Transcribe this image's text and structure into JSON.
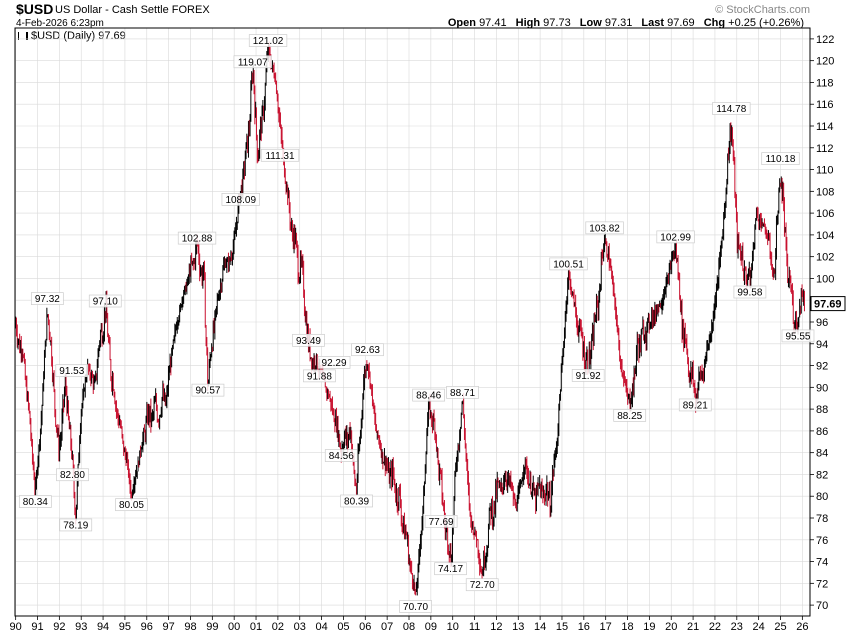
{
  "header": {
    "symbol": "$USD",
    "name": "US Dollar - Cash Settle",
    "exchange": "FOREX",
    "date": "4-Feb-2026 6:23pm",
    "brand": "© StockCharts.com",
    "open_label": "Open",
    "open": "97.41",
    "high_label": "High",
    "high": "97.73",
    "low_label": "Low",
    "low": "97.31",
    "last_label": "Last",
    "last": "97.69",
    "chg_label": "Chg",
    "chg": "+0.25 (+0.26%)"
  },
  "legend": {
    "text": "$USD (Daily) 97.69"
  },
  "colors": {
    "up": "#000000",
    "down": "#c8102e",
    "grid": "#d9d9d9"
  },
  "chart_data": {
    "type": "line",
    "series_name": "$USD (Daily)",
    "x_range": [
      1990.0,
      2026.1
    ],
    "ylim": [
      69,
      123
    ],
    "y_ticks": [
      70,
      72,
      74,
      76,
      78,
      80,
      82,
      84,
      86,
      88,
      90,
      92,
      94,
      96,
      98,
      100,
      102,
      104,
      106,
      108,
      110,
      112,
      114,
      116,
      118,
      120,
      122
    ],
    "x_ticks": [
      {
        "x": 1990,
        "label": "90"
      },
      {
        "x": 1991,
        "label": "91"
      },
      {
        "x": 1992,
        "label": "92"
      },
      {
        "x": 1993,
        "label": "93"
      },
      {
        "x": 1994,
        "label": "94"
      },
      {
        "x": 1995,
        "label": "95"
      },
      {
        "x": 1996,
        "label": "96"
      },
      {
        "x": 1997,
        "label": "97"
      },
      {
        "x": 1998,
        "label": "98"
      },
      {
        "x": 1999,
        "label": "99"
      },
      {
        "x": 2000,
        "label": "00"
      },
      {
        "x": 2001,
        "label": "01"
      },
      {
        "x": 2002,
        "label": "02"
      },
      {
        "x": 2003,
        "label": "03"
      },
      {
        "x": 2004,
        "label": "04"
      },
      {
        "x": 2005,
        "label": "05"
      },
      {
        "x": 2006,
        "label": "06"
      },
      {
        "x": 2007,
        "label": "07"
      },
      {
        "x": 2008,
        "label": "08"
      },
      {
        "x": 2009,
        "label": "09"
      },
      {
        "x": 2010,
        "label": "10"
      },
      {
        "x": 2011,
        "label": "11"
      },
      {
        "x": 2012,
        "label": "12"
      },
      {
        "x": 2013,
        "label": "13"
      },
      {
        "x": 2014,
        "label": "14"
      },
      {
        "x": 2015,
        "label": "15"
      },
      {
        "x": 2016,
        "label": "16"
      },
      {
        "x": 2017,
        "label": "17"
      },
      {
        "x": 2018,
        "label": "18"
      },
      {
        "x": 2019,
        "label": "19"
      },
      {
        "x": 2020,
        "label": "20"
      },
      {
        "x": 2021,
        "label": "21"
      },
      {
        "x": 2022,
        "label": "22"
      },
      {
        "x": 2023,
        "label": "23"
      },
      {
        "x": 2024,
        "label": "24"
      },
      {
        "x": 2025,
        "label": "25"
      },
      {
        "x": 2026,
        "label": "26"
      }
    ],
    "points": [
      [
        1990.0,
        95.5
      ],
      [
        1990.3,
        93.5
      ],
      [
        1990.6,
        88.0
      ],
      [
        1990.9,
        80.34
      ],
      [
        1991.2,
        88.0
      ],
      [
        1991.45,
        97.32
      ],
      [
        1991.7,
        91.53
      ],
      [
        1991.95,
        84.0
      ],
      [
        1992.3,
        90.0
      ],
      [
        1992.6,
        82.8
      ],
      [
        1992.75,
        78.19
      ],
      [
        1993.0,
        88.0
      ],
      [
        1993.3,
        92.0
      ],
      [
        1993.6,
        90.0
      ],
      [
        1993.9,
        95.0
      ],
      [
        1994.1,
        97.1
      ],
      [
        1994.4,
        91.0
      ],
      [
        1994.8,
        86.0
      ],
      [
        1995.1,
        83.0
      ],
      [
        1995.3,
        80.05
      ],
      [
        1995.7,
        84.0
      ],
      [
        1996.0,
        87.0
      ],
      [
        1996.5,
        88.0
      ],
      [
        1996.9,
        89.0
      ],
      [
        1997.2,
        94.0
      ],
      [
        1997.6,
        98.0
      ],
      [
        1997.9,
        100.0
      ],
      [
        1998.3,
        102.88
      ],
      [
        1998.6,
        100.0
      ],
      [
        1998.8,
        90.57
      ],
      [
        1999.1,
        96.0
      ],
      [
        1999.5,
        101.0
      ],
      [
        1999.9,
        102.0
      ],
      [
        2000.3,
        108.09
      ],
      [
        2000.6,
        112.0
      ],
      [
        2000.85,
        119.07
      ],
      [
        2001.1,
        111.31
      ],
      [
        2001.4,
        117.0
      ],
      [
        2001.55,
        121.02
      ],
      [
        2001.9,
        118.0
      ],
      [
        2002.3,
        110.0
      ],
      [
        2002.6,
        105.0
      ],
      [
        2002.9,
        102.0
      ],
      [
        2003.2,
        99.0
      ],
      [
        2003.4,
        93.49
      ],
      [
        2003.7,
        92.29
      ],
      [
        2003.9,
        91.88
      ],
      [
        2004.2,
        90.0
      ],
      [
        2004.5,
        88.0
      ],
      [
        2004.9,
        84.56
      ],
      [
        2005.3,
        86.0
      ],
      [
        2005.6,
        80.39
      ],
      [
        2005.9,
        90.0
      ],
      [
        2006.1,
        92.63
      ],
      [
        2006.5,
        86.0
      ],
      [
        2006.9,
        83.0
      ],
      [
        2007.4,
        81.0
      ],
      [
        2007.8,
        77.0
      ],
      [
        2008.2,
        72.0
      ],
      [
        2008.3,
        70.7
      ],
      [
        2008.6,
        77.69
      ],
      [
        2008.9,
        88.46
      ],
      [
        2009.2,
        86.0
      ],
      [
        2009.5,
        80.0
      ],
      [
        2009.9,
        74.17
      ],
      [
        2010.2,
        84.0
      ],
      [
        2010.45,
        88.71
      ],
      [
        2010.8,
        78.0
      ],
      [
        2011.1,
        76.0
      ],
      [
        2011.35,
        72.7
      ],
      [
        2011.7,
        78.0
      ],
      [
        2012.0,
        80.0
      ],
      [
        2012.5,
        82.0
      ],
      [
        2012.9,
        79.0
      ],
      [
        2013.3,
        83.0
      ],
      [
        2013.7,
        80.0
      ],
      [
        2014.1,
        80.5
      ],
      [
        2014.5,
        80.0
      ],
      [
        2014.8,
        86.0
      ],
      [
        2015.1,
        95.0
      ],
      [
        2015.3,
        100.51
      ],
      [
        2015.7,
        96.0
      ],
      [
        2016.2,
        91.92
      ],
      [
        2016.6,
        97.0
      ],
      [
        2016.95,
        103.82
      ],
      [
        2017.3,
        100.0
      ],
      [
        2017.7,
        92.0
      ],
      [
        2018.1,
        88.25
      ],
      [
        2018.5,
        94.0
      ],
      [
        2019.0,
        96.0
      ],
      [
        2019.6,
        98.0
      ],
      [
        2020.2,
        102.99
      ],
      [
        2020.5,
        96.0
      ],
      [
        2020.9,
        91.0
      ],
      [
        2021.1,
        89.21
      ],
      [
        2021.5,
        92.0
      ],
      [
        2021.9,
        96.0
      ],
      [
        2022.3,
        103.0
      ],
      [
        2022.75,
        114.78
      ],
      [
        2023.0,
        104.0
      ],
      [
        2023.3,
        101.0
      ],
      [
        2023.6,
        99.58
      ],
      [
        2023.9,
        106.0
      ],
      [
        2024.4,
        104.0
      ],
      [
        2024.7,
        100.0
      ],
      [
        2025.0,
        110.18
      ],
      [
        2025.3,
        101.0
      ],
      [
        2025.6,
        97.0
      ],
      [
        2025.8,
        95.55
      ],
      [
        2025.95,
        99.0
      ],
      [
        2026.1,
        97.69
      ]
    ],
    "annotations": [
      {
        "x": 1990.9,
        "y": 80.34,
        "label": "80.34",
        "pos": "below"
      },
      {
        "x": 1991.45,
        "y": 97.32,
        "label": "97.32",
        "pos": "above"
      },
      {
        "x": 1991.7,
        "y": 91.53,
        "label": "91.53",
        "pos": "right"
      },
      {
        "x": 1992.6,
        "y": 82.8,
        "label": "82.80",
        "pos": "below"
      },
      {
        "x": 1992.75,
        "y": 78.19,
        "label": "78.19",
        "pos": "below"
      },
      {
        "x": 1994.1,
        "y": 97.1,
        "label": "97.10",
        "pos": "above"
      },
      {
        "x": 1995.3,
        "y": 80.05,
        "label": "80.05",
        "pos": "below"
      },
      {
        "x": 1998.3,
        "y": 102.88,
        "label": "102.88",
        "pos": "above"
      },
      {
        "x": 1998.8,
        "y": 90.57,
        "label": "90.57",
        "pos": "below"
      },
      {
        "x": 2000.3,
        "y": 108.09,
        "label": "108.09",
        "pos": "below"
      },
      {
        "x": 2000.85,
        "y": 119.07,
        "label": "119.07",
        "pos": "above"
      },
      {
        "x": 2001.1,
        "y": 111.31,
        "label": "111.31",
        "pos": "right"
      },
      {
        "x": 2001.55,
        "y": 121.02,
        "label": "121.02",
        "pos": "above"
      },
      {
        "x": 2003.4,
        "y": 93.49,
        "label": "93.49",
        "pos": "above"
      },
      {
        "x": 2003.7,
        "y": 92.29,
        "label": "92.29",
        "pos": "right"
      },
      {
        "x": 2003.9,
        "y": 91.88,
        "label": "91.88",
        "pos": "below"
      },
      {
        "x": 2004.9,
        "y": 84.56,
        "label": "84.56",
        "pos": "below"
      },
      {
        "x": 2005.6,
        "y": 80.39,
        "label": "80.39",
        "pos": "below"
      },
      {
        "x": 2006.1,
        "y": 92.63,
        "label": "92.63",
        "pos": "above"
      },
      {
        "x": 2008.3,
        "y": 70.7,
        "label": "70.70",
        "pos": "below"
      },
      {
        "x": 2008.6,
        "y": 77.69,
        "label": "77.69",
        "pos": "right"
      },
      {
        "x": 2008.9,
        "y": 88.46,
        "label": "88.46",
        "pos": "above"
      },
      {
        "x": 2009.9,
        "y": 74.17,
        "label": "74.17",
        "pos": "below"
      },
      {
        "x": 2010.45,
        "y": 88.71,
        "label": "88.71",
        "pos": "above"
      },
      {
        "x": 2011.35,
        "y": 72.7,
        "label": "72.70",
        "pos": "below"
      },
      {
        "x": 2015.3,
        "y": 100.51,
        "label": "100.51",
        "pos": "above"
      },
      {
        "x": 2016.2,
        "y": 91.92,
        "label": "91.92",
        "pos": "below"
      },
      {
        "x": 2016.95,
        "y": 103.82,
        "label": "103.82",
        "pos": "above"
      },
      {
        "x": 2018.1,
        "y": 88.25,
        "label": "88.25",
        "pos": "below"
      },
      {
        "x": 2020.2,
        "y": 102.99,
        "label": "102.99",
        "pos": "above"
      },
      {
        "x": 2021.1,
        "y": 89.21,
        "label": "89.21",
        "pos": "below"
      },
      {
        "x": 2022.75,
        "y": 114.78,
        "label": "114.78",
        "pos": "above"
      },
      {
        "x": 2023.6,
        "y": 99.58,
        "label": "99.58",
        "pos": "below"
      },
      {
        "x": 2025.0,
        "y": 110.18,
        "label": "110.18",
        "pos": "above"
      },
      {
        "x": 2025.8,
        "y": 95.55,
        "label": "95.55",
        "pos": "below"
      }
    ],
    "last_value_label": "97.69"
  }
}
